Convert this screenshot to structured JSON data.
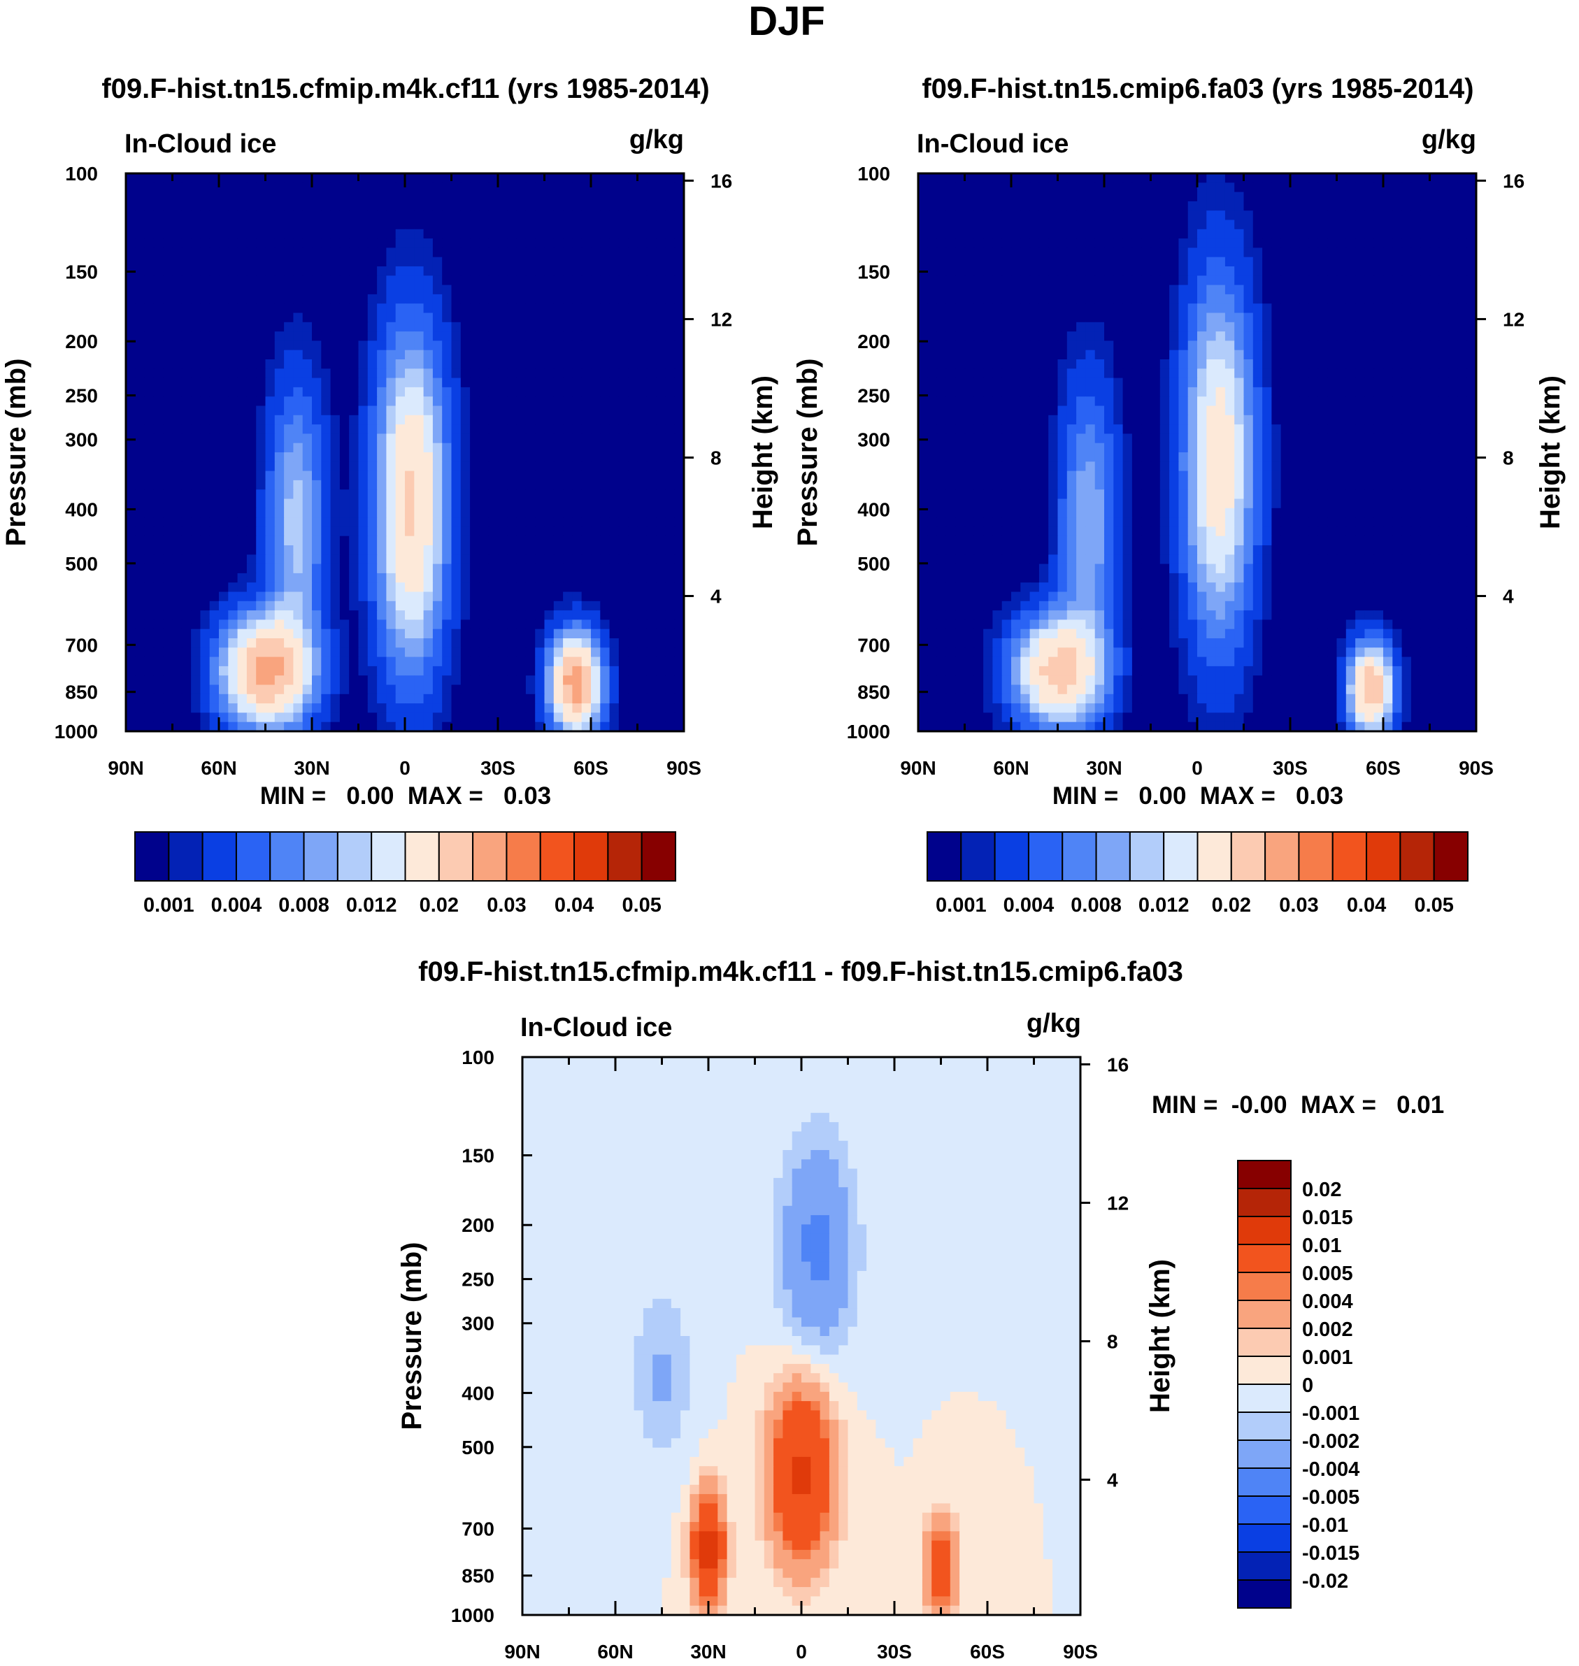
{
  "figure": {
    "title": "DJF"
  },
  "colors": {
    "abs_levels_palette": [
      "#00028c",
      "#0322b5",
      "#0a3fe3",
      "#2a63f4",
      "#4f84f6",
      "#7ea6f7",
      "#b2cdfa",
      "#dbeafd",
      "#fde9d9",
      "#fccbb2",
      "#f9a47e",
      "#f67c4a",
      "#f2541e",
      "#e03a0a",
      "#b52507",
      "#870000"
    ],
    "diff_levels_palette": [
      "#00028c",
      "#0322b5",
      "#0a3fe3",
      "#2a63f4",
      "#4f84f6",
      "#7ea6f7",
      "#b2cdfa",
      "#dbeafd",
      "#fde9d9",
      "#fccbb2",
      "#f9a47e",
      "#f67c4a",
      "#f2541e",
      "#e03a0a",
      "#b52507",
      "#870000"
    ]
  },
  "chart_data": [
    {
      "type": "contour",
      "title": "f09.F-hist.tn15.cfmip.m4k.cf11 (yrs 1985-2014)",
      "left_label": "In-Cloud ice",
      "right_label": "g/kg",
      "ylabel": "Pressure (mb)",
      "ylabel_right": "Height (km)",
      "x_ticklabels": [
        "90N",
        "60N",
        "30N",
        "0",
        "30S",
        "60S",
        "90S"
      ],
      "y_ticklabels": [
        "100",
        "150",
        "200",
        "250",
        "300",
        "400",
        "500",
        "700",
        "850",
        "1000"
      ],
      "y_right_ticklabels": [
        "16",
        "12",
        "8",
        "4"
      ],
      "minmax_text": "MIN =   0.00  MAX =   0.03",
      "colorbar_labels": [
        "0.001",
        "0.004",
        "0.008",
        "0.012",
        "0.02",
        "0.03",
        "0.04",
        "0.05"
      ],
      "levels": [
        0.001,
        0.002,
        0.004,
        0.006,
        0.008,
        0.01,
        0.012,
        0.015,
        0.02,
        0.025,
        0.03,
        0.035,
        0.04,
        0.045,
        0.05
      ],
      "features": [
        {
          "name": "tropical-core",
          "lat": -2,
          "p": 390,
          "peak": 0.021,
          "lat_width": 11,
          "p_width": 0.65
        },
        {
          "name": "nh-lowlevel",
          "lat": 45,
          "p": 780,
          "peak": 0.026,
          "lat_width": 14,
          "p_width": 0.22
        },
        {
          "name": "nh-upper-tongue",
          "lat": 35,
          "p": 420,
          "peak": 0.011,
          "lat_width": 9,
          "p_width": 0.55
        },
        {
          "name": "sh-lowlevel",
          "lat": -55,
          "p": 820,
          "peak": 0.028,
          "lat_width": 8,
          "p_width": 0.2
        }
      ]
    },
    {
      "type": "contour",
      "title": "f09.F-hist.tn15.cmip6.fa03 (yrs 1985-2014)",
      "left_label": "In-Cloud ice",
      "right_label": "g/kg",
      "ylabel": "Pressure (mb)",
      "ylabel_right": "Height (km)",
      "x_ticklabels": [
        "90N",
        "60N",
        "30N",
        "0",
        "30S",
        "60S",
        "90S"
      ],
      "y_ticklabels": [
        "100",
        "150",
        "200",
        "250",
        "300",
        "400",
        "500",
        "700",
        "850",
        "1000"
      ],
      "y_right_ticklabels": [
        "16",
        "12",
        "8",
        "4"
      ],
      "minmax_text": "MIN =   0.00  MAX =   0.03",
      "colorbar_labels": [
        "0.001",
        "0.004",
        "0.008",
        "0.012",
        "0.02",
        "0.03",
        "0.04",
        "0.05"
      ],
      "levels": [
        0.001,
        0.002,
        0.004,
        0.006,
        0.008,
        0.01,
        0.012,
        0.015,
        0.02,
        0.025,
        0.03,
        0.035,
        0.04,
        0.045,
        0.05
      ],
      "features": [
        {
          "name": "tropical-core",
          "lat": -7,
          "p": 330,
          "peak": 0.018,
          "lat_width": 11,
          "p_width": 0.7
        },
        {
          "name": "nh-lowlevel",
          "lat": 45,
          "p": 780,
          "peak": 0.022,
          "lat_width": 14,
          "p_width": 0.22
        },
        {
          "name": "nh-upper-tongue",
          "lat": 35,
          "p": 420,
          "peak": 0.01,
          "lat_width": 9,
          "p_width": 0.55
        },
        {
          "name": "sh-lowlevel",
          "lat": -56,
          "p": 840,
          "peak": 0.024,
          "lat_width": 7,
          "p_width": 0.18
        }
      ]
    },
    {
      "type": "contour",
      "title": "f09.F-hist.tn15.cfmip.m4k.cf11 - f09.F-hist.tn15.cmip6.fa03",
      "left_label": "In-Cloud ice",
      "right_label": "g/kg",
      "ylabel": "Pressure (mb)",
      "ylabel_right": "Height (km)",
      "x_ticklabels": [
        "90N",
        "60N",
        "30N",
        "0",
        "30S",
        "60S",
        "90S"
      ],
      "y_ticklabels": [
        "100",
        "150",
        "200",
        "250",
        "300",
        "400",
        "500",
        "700",
        "850",
        "1000"
      ],
      "y_right_ticklabels": [
        "16",
        "12",
        "8",
        "4"
      ],
      "minmax_text": "MIN =  -0.00  MAX =   0.01",
      "colorbar_labels": [
        "0.02",
        "0.015",
        "0.01",
        "0.005",
        "0.004",
        "0.002",
        "0.001",
        "0",
        "-0.001",
        "-0.002",
        "-0.004",
        "-0.005",
        "-0.01",
        "-0.015",
        "-0.02"
      ],
      "levels": [
        -0.02,
        -0.015,
        -0.01,
        -0.005,
        -0.004,
        -0.002,
        -0.001,
        0,
        0.001,
        0.002,
        0.004,
        0.005,
        0.01,
        0.015,
        0.02
      ],
      "features": [
        {
          "name": "tropical-positive",
          "lat": 0,
          "p": 560,
          "peak": 0.011,
          "lat_width": 10,
          "p_width": 0.35
        },
        {
          "name": "nh-positive",
          "lat": 30,
          "p": 760,
          "peak": 0.012,
          "lat_width": 5,
          "p_width": 0.22
        },
        {
          "name": "sh-positive",
          "lat": -45,
          "p": 820,
          "peak": 0.009,
          "lat_width": 5,
          "p_width": 0.18
        },
        {
          "name": "upper-negative",
          "lat": -5,
          "p": 220,
          "peak": -0.0045,
          "lat_width": 12,
          "p_width": 0.45
        },
        {
          "name": "nh-upper-negative",
          "lat": 45,
          "p": 370,
          "peak": -0.0022,
          "lat_width": 10,
          "p_width": 0.35
        }
      ]
    }
  ]
}
